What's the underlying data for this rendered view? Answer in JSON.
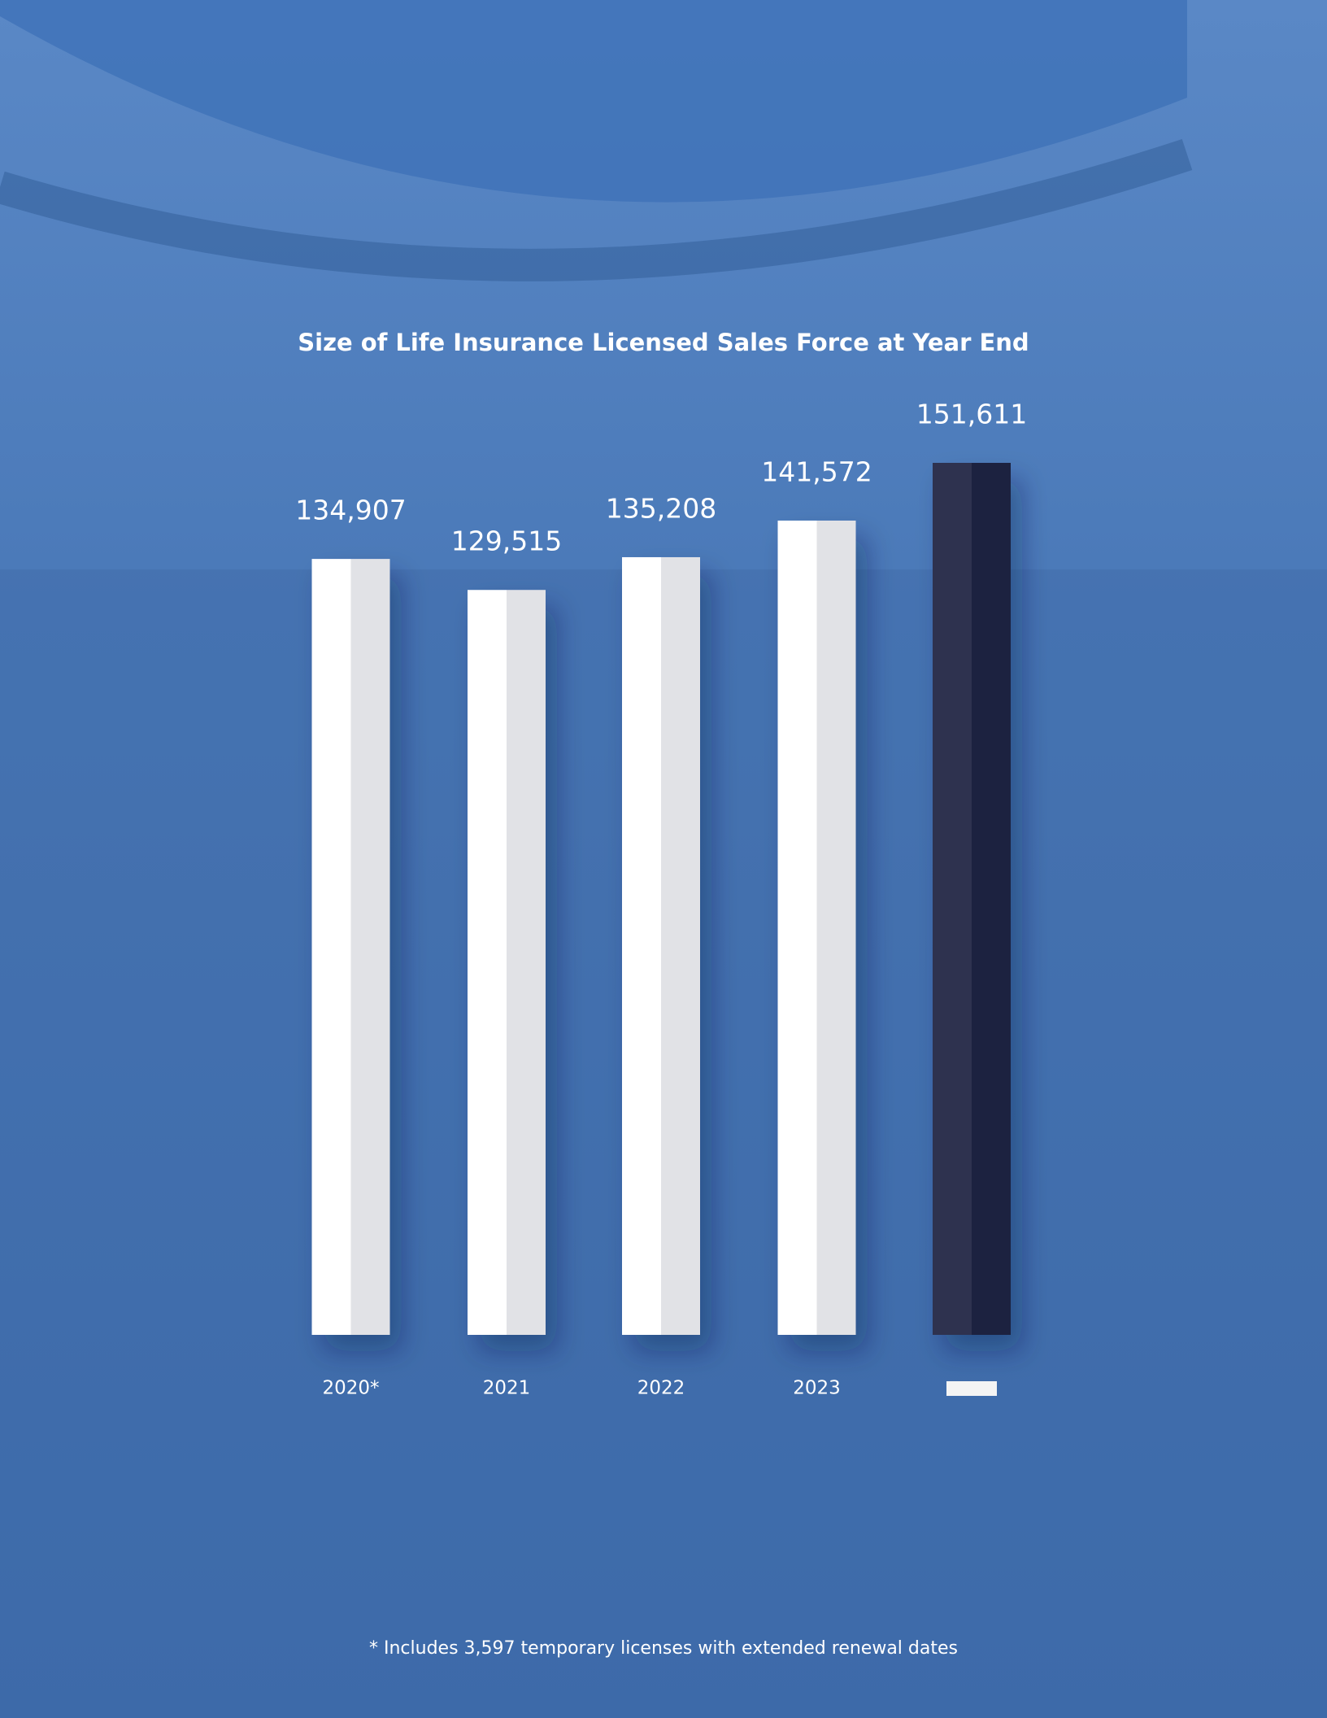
{
  "chart_data": {
    "type": "bar",
    "title": "Size of Life Insurance Licensed Sales Force at Year End",
    "categories": [
      "2020*",
      "2021",
      "2022",
      "2023",
      null
    ],
    "values": [
      134907,
      129515,
      135208,
      141572,
      151611
    ],
    "value_labels": [
      "134,907",
      "129,515",
      "135,208",
      "141,572",
      "151,611"
    ],
    "colors": [
      "#ffffff",
      "#ffffff",
      "#ffffff",
      "#ffffff",
      "#2d3350"
    ],
    "footnote": "* Includes 3,597 temporary licenses with extended renewal dates"
  }
}
